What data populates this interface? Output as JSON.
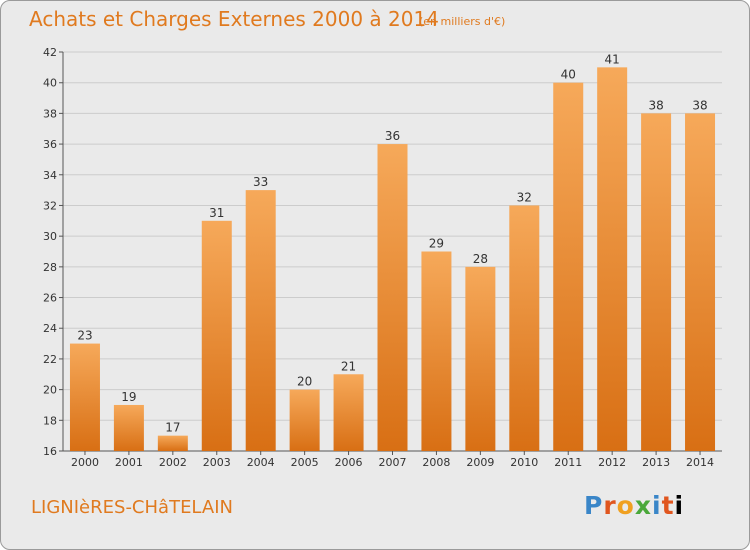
{
  "title": "Achats et Charges Externes 2000 à 2014",
  "subtitle": "(en milliers d'€)",
  "commune": "LIGNIèRES-CHâTELAIN",
  "brand": {
    "letters": [
      "P",
      "r",
      "o",
      "x",
      "i",
      "t",
      "i"
    ]
  },
  "colors": {
    "title": "#e07a1f",
    "bar_top": "#f6a95a",
    "bar_bottom": "#d86f14",
    "background": "#eaeaea",
    "grid": "#cccccc"
  },
  "chart_data": {
    "type": "bar",
    "title": "Achats et Charges Externes 2000 à 2014",
    "xlabel": "",
    "ylabel": "",
    "ylim": [
      16,
      42
    ],
    "yticks": [
      16,
      18,
      20,
      22,
      24,
      26,
      28,
      30,
      32,
      34,
      36,
      38,
      40,
      42
    ],
    "grid": true,
    "categories": [
      "2000",
      "2001",
      "2002",
      "2003",
      "2004",
      "2005",
      "2006",
      "2007",
      "2008",
      "2009",
      "2010",
      "2011",
      "2012",
      "2013",
      "2014"
    ],
    "values": [
      23,
      19,
      17,
      31,
      33,
      20,
      21,
      36,
      29,
      28,
      32,
      40,
      41,
      38,
      38
    ]
  }
}
